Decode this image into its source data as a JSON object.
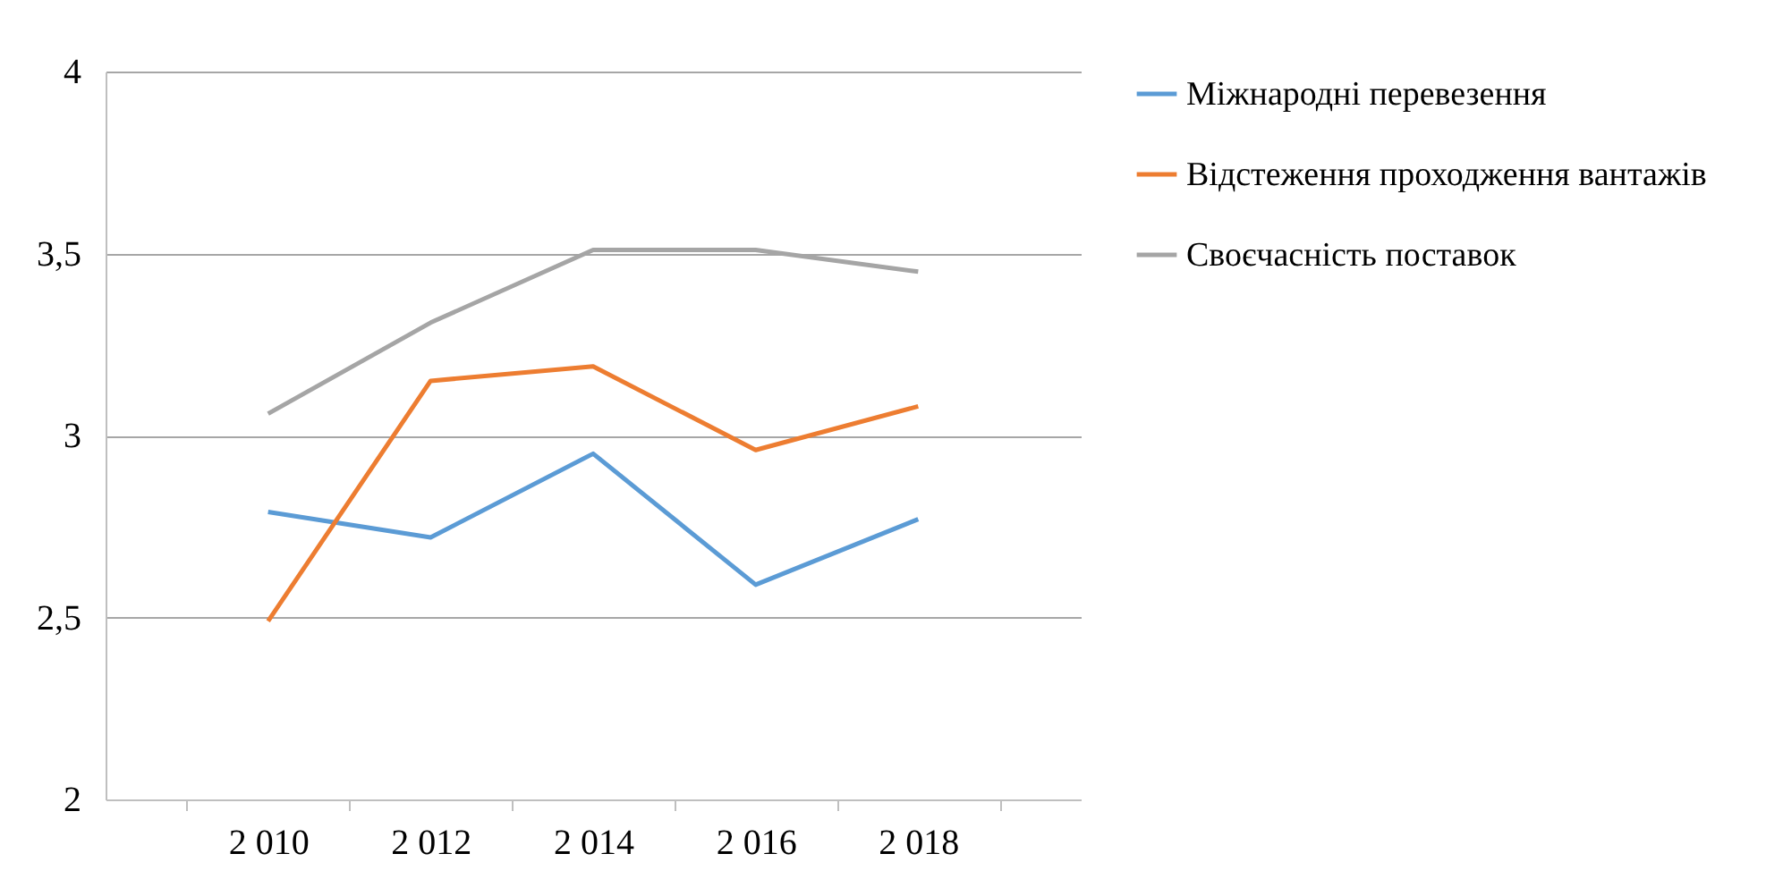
{
  "chart_data": {
    "type": "line",
    "categories": [
      "2 010",
      "2 012",
      "2 014",
      "2 016",
      "2 018"
    ],
    "series": [
      {
        "name": "Міжнародні перевезення",
        "color": "#5b9bd5",
        "values": [
          2.79,
          2.72,
          2.95,
          2.59,
          2.77
        ]
      },
      {
        "name": "Відстеження проходження вантажів",
        "color": "#ed7d31",
        "values": [
          2.49,
          3.15,
          3.19,
          2.96,
          3.08
        ]
      },
      {
        "name": "Своєчасність поставок",
        "color": "#a5a5a5",
        "values": [
          3.06,
          3.31,
          3.51,
          3.51,
          3.45
        ]
      }
    ],
    "ylim": [
      2,
      4
    ],
    "yticks": [
      2,
      {
        "value": 2.5,
        "label": "2,5"
      },
      3,
      {
        "value": 3.5,
        "label": "3,5"
      },
      4
    ],
    "grid": "y",
    "legend": "right",
    "marker": "none",
    "line_style": "solid"
  }
}
